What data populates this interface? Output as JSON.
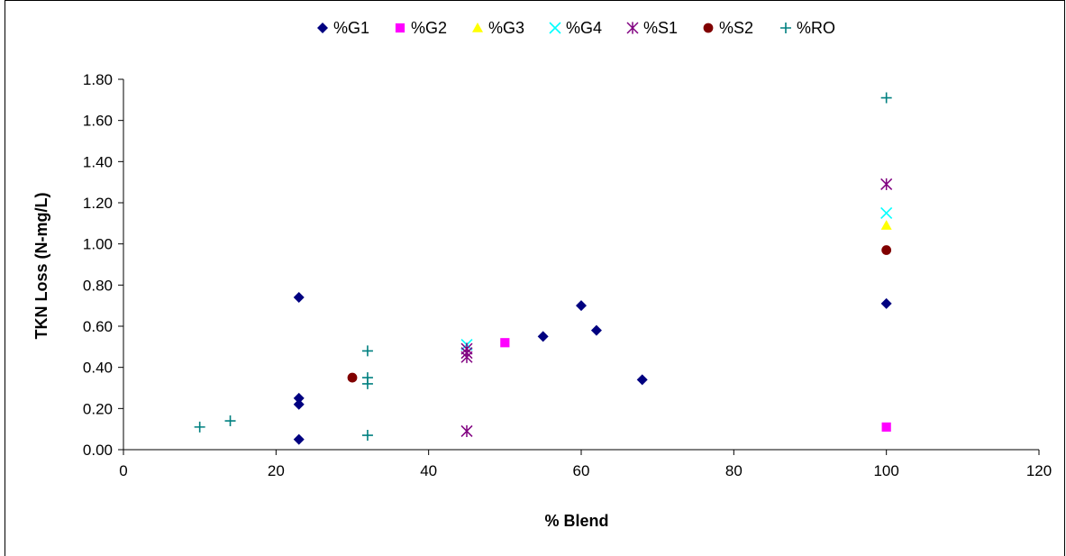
{
  "chart_data": {
    "type": "scatter",
    "xlabel": "% Blend",
    "ylabel": "TKN Loss (N-mg/L)",
    "xlim": [
      0,
      120
    ],
    "ylim": [
      0,
      1.8
    ],
    "x_ticks": [
      "0",
      "20",
      "40",
      "60",
      "80",
      "100",
      "120"
    ],
    "y_ticks": [
      "0.00",
      "0.20",
      "0.40",
      "0.60",
      "0.80",
      "1.00",
      "1.20",
      "1.40",
      "1.60",
      "1.80"
    ],
    "grid": false,
    "legend_position": "top",
    "series": [
      {
        "name": "%G1",
        "marker": "diamond",
        "color": "#000080",
        "points": [
          [
            23,
            0.74
          ],
          [
            23,
            0.25
          ],
          [
            23,
            0.22
          ],
          [
            23,
            0.05
          ],
          [
            55,
            0.55
          ],
          [
            60,
            0.7
          ],
          [
            62,
            0.58
          ],
          [
            68,
            0.34
          ],
          [
            100,
            0.71
          ]
        ]
      },
      {
        "name": "%G2",
        "marker": "square",
        "color": "#ff00ff",
        "points": [
          [
            50,
            0.52
          ],
          [
            100,
            0.11
          ]
        ]
      },
      {
        "name": "%G3",
        "marker": "triangle",
        "color": "#ffff00",
        "points": [
          [
            100,
            1.09
          ]
        ]
      },
      {
        "name": "%G4",
        "marker": "x",
        "color": "#00ffff",
        "points": [
          [
            45,
            0.51
          ],
          [
            100,
            1.15
          ]
        ]
      },
      {
        "name": "%S1",
        "marker": "star",
        "color": "#800080",
        "points": [
          [
            45,
            0.49
          ],
          [
            45,
            0.47
          ],
          [
            45,
            0.45
          ],
          [
            45,
            0.09
          ],
          [
            100,
            1.29
          ]
        ]
      },
      {
        "name": "%S2",
        "marker": "circle",
        "color": "#800000",
        "points": [
          [
            30,
            0.35
          ],
          [
            100,
            0.97
          ]
        ]
      },
      {
        "name": "%RO",
        "marker": "plus",
        "color": "#008080",
        "points": [
          [
            10,
            0.11
          ],
          [
            14,
            0.14
          ],
          [
            32,
            0.48
          ],
          [
            32,
            0.35
          ],
          [
            32,
            0.32
          ],
          [
            32,
            0.07
          ],
          [
            100,
            1.71
          ]
        ]
      }
    ]
  }
}
